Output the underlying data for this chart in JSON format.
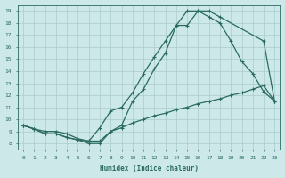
{
  "xlabel": "Humidex (Indice chaleur)",
  "bg_color": "#cce8e8",
  "line_color": "#2a6b5e",
  "grid_color": "#b0d8d8",
  "xlim": [
    -0.5,
    23.5
  ],
  "ylim": [
    7.5,
    19.5
  ],
  "xticks": [
    0,
    1,
    2,
    3,
    4,
    5,
    6,
    7,
    8,
    9,
    10,
    11,
    12,
    13,
    14,
    15,
    16,
    17,
    18,
    19,
    20,
    21,
    22,
    23
  ],
  "yticks": [
    8,
    9,
    10,
    11,
    12,
    13,
    14,
    15,
    16,
    17,
    18,
    19
  ],
  "line1_x": [
    0,
    1,
    2,
    3,
    4,
    5,
    6,
    7,
    8,
    9,
    10,
    11,
    12,
    13,
    14,
    15,
    16,
    17,
    18,
    22,
    23
  ],
  "line1_y": [
    9.5,
    9.2,
    9.0,
    9.0,
    8.8,
    8.4,
    8.2,
    8.2,
    9.0,
    9.5,
    11.5,
    12.5,
    14.2,
    15.5,
    17.8,
    17.8,
    19.0,
    19.0,
    18.5,
    16.5,
    11.5
  ],
  "line2_x": [
    0,
    1,
    2,
    3,
    4,
    5,
    6,
    7,
    8,
    9,
    10,
    11,
    12,
    13,
    14,
    15,
    16,
    17,
    18,
    19,
    20,
    21,
    22,
    23
  ],
  "line2_y": [
    9.5,
    9.2,
    8.8,
    8.8,
    8.5,
    8.3,
    8.2,
    9.3,
    10.7,
    11.0,
    12.2,
    13.8,
    15.2,
    16.5,
    17.8,
    19.0,
    19.0,
    18.5,
    18.0,
    16.5,
    14.8,
    13.8,
    12.3,
    11.5
  ],
  "line3_x": [
    0,
    1,
    2,
    3,
    4,
    5,
    6,
    7,
    8,
    9,
    10,
    11,
    12,
    13,
    14,
    15,
    16,
    17,
    18,
    19,
    20,
    21,
    22,
    23
  ],
  "line3_y": [
    9.5,
    9.2,
    8.8,
    8.8,
    8.5,
    8.3,
    8.0,
    8.0,
    9.0,
    9.3,
    9.7,
    10.0,
    10.3,
    10.5,
    10.8,
    11.0,
    11.3,
    11.5,
    11.7,
    12.0,
    12.2,
    12.5,
    12.8,
    11.5
  ]
}
